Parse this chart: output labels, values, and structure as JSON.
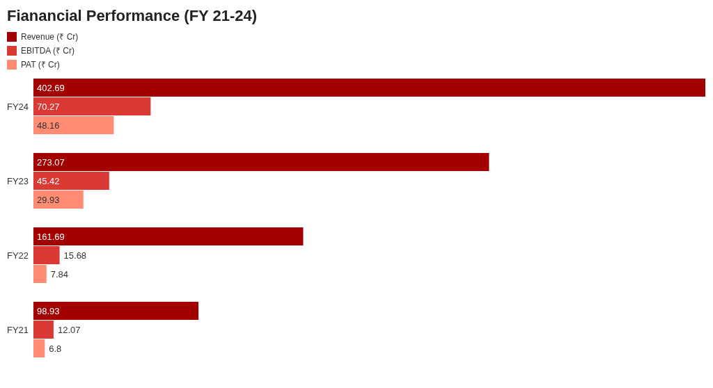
{
  "chart_data": {
    "type": "bar",
    "orientation": "horizontal",
    "title": "Fianancial Performance (FY 21-24)",
    "categories": [
      "FY24",
      "FY23",
      "FY22",
      "FY21"
    ],
    "series": [
      {
        "name": "Revenue (₹ Cr)",
        "color": "#a30000",
        "values": [
          402.69,
          273.07,
          161.69,
          98.93
        ]
      },
      {
        "name": "EBITDA (₹ Cr)",
        "color": "#db3a34",
        "values": [
          70.27,
          45.42,
          15.68,
          12.07
        ]
      },
      {
        "name": "PAT (₹ Cr)",
        "color": "#ff8c72",
        "values": [
          48.16,
          29.93,
          7.84,
          6.8
        ]
      }
    ],
    "data_labels": true,
    "legend": "top left",
    "tick_labels": "y"
  }
}
